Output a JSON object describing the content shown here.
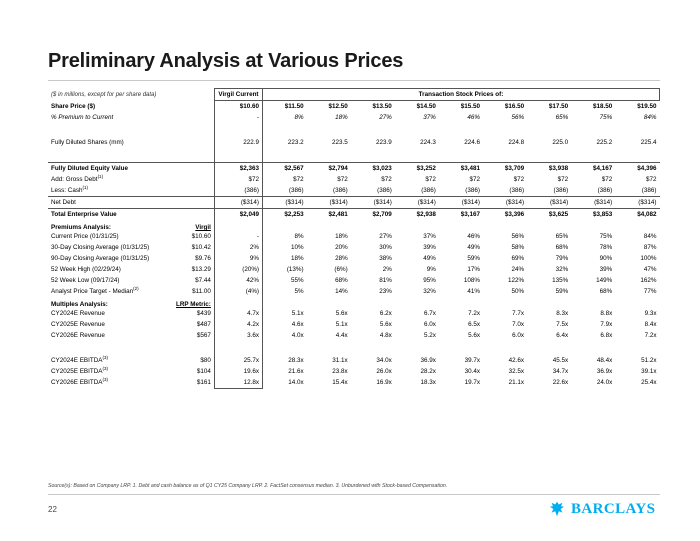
{
  "title": "Preliminary Analysis at Various Prices",
  "note": "($ in millions, except for per share data)",
  "header_current": "Virgil Current",
  "header_transaction": "Transaction Stock Prices of:",
  "rows_top": [
    {
      "label": "Share Price ($)",
      "style": "strong",
      "cur": "$10.60",
      "tx": [
        "$11.50",
        "$12.50",
        "$13.50",
        "$14.50",
        "$15.50",
        "$16.50",
        "$17.50",
        "$18.50",
        "$19.50"
      ]
    },
    {
      "label": "% Premium to Current",
      "style": "ital2",
      "cur": "-",
      "tx": [
        "8%",
        "18%",
        "27%",
        "37%",
        "46%",
        "56%",
        "65%",
        "75%",
        "84%"
      ]
    },
    {
      "spacer": true
    },
    {
      "label": "Fully Diluted Shares (mm)",
      "style": "plain",
      "cur": "222.9",
      "tx": [
        "223.2",
        "223.5",
        "223.9",
        "224.3",
        "224.6",
        "224.8",
        "225.0",
        "225.2",
        "225.4"
      ]
    },
    {
      "spacer": true
    },
    {
      "label": "Fully Diluted Equity Value",
      "style": "strong-border",
      "cur": "$2,363",
      "tx": [
        "$2,567",
        "$2,794",
        "$3,023",
        "$3,252",
        "$3,481",
        "$3,709",
        "$3,938",
        "$4,167",
        "$4,396"
      ]
    },
    {
      "label": "Add: Gross Debt",
      "sup": "(1)",
      "style": "ind1",
      "cur": "$72",
      "tx": [
        "$72",
        "$72",
        "$72",
        "$72",
        "$72",
        "$72",
        "$72",
        "$72",
        "$72"
      ]
    },
    {
      "label": "Less: Cash",
      "sup": "(1)",
      "style": "ind1",
      "cur": "(386)",
      "tx": [
        "(386)",
        "(386)",
        "(386)",
        "(386)",
        "(386)",
        "(386)",
        "(386)",
        "(386)",
        "(386)"
      ]
    },
    {
      "label": "Net Debt",
      "style": "ind1-border",
      "cur": "($314)",
      "tx": [
        "($314)",
        "($314)",
        "($314)",
        "($314)",
        "($314)",
        "($314)",
        "($314)",
        "($314)",
        "($314)"
      ]
    },
    {
      "label": "Total Enterprise Value",
      "style": "strong-border",
      "cur": "$2,049",
      "tx": [
        "$2,253",
        "$2,481",
        "$2,709",
        "$2,938",
        "$3,167",
        "$3,396",
        "$3,625",
        "$3,853",
        "$4,082"
      ]
    }
  ],
  "premiums": {
    "heading": "Premiums Analysis:",
    "side_heading": "Virgil",
    "rows": [
      {
        "label": "Current Price (01/31/25)",
        "side": "$10.60",
        "cur": "-",
        "tx": [
          "8%",
          "18%",
          "27%",
          "37%",
          "46%",
          "56%",
          "65%",
          "75%",
          "84%"
        ]
      },
      {
        "label": "30-Day Closing Average (01/31/25)",
        "side": "$10.42",
        "cur": "2%",
        "tx": [
          "10%",
          "20%",
          "30%",
          "39%",
          "49%",
          "58%",
          "68%",
          "78%",
          "87%"
        ]
      },
      {
        "label": "90-Day Closing Average (01/31/25)",
        "side": "$9.76",
        "cur": "9%",
        "tx": [
          "18%",
          "28%",
          "38%",
          "49%",
          "59%",
          "69%",
          "79%",
          "90%",
          "100%"
        ]
      },
      {
        "label": "52 Week High (02/29/24)",
        "side": "$13.29",
        "cur": "(20%)",
        "tx": [
          "(13%)",
          "(6%)",
          "2%",
          "9%",
          "17%",
          "24%",
          "32%",
          "39%",
          "47%"
        ]
      },
      {
        "label": "52 Week Low (09/17/24)",
        "side": "$7.44",
        "cur": "42%",
        "tx": [
          "55%",
          "68%",
          "81%",
          "95%",
          "108%",
          "122%",
          "135%",
          "149%",
          "162%"
        ]
      },
      {
        "label": "Analyst Price Target - Median",
        "sup": "(2)",
        "side": "$11.00",
        "cur": "(4%)",
        "tx": [
          "5%",
          "14%",
          "23%",
          "32%",
          "41%",
          "50%",
          "59%",
          "68%",
          "77%"
        ]
      }
    ]
  },
  "multiples": {
    "heading": "Multiples Analysis:",
    "side_heading": "LRP Metric:",
    "rows": [
      {
        "label": "CY2024E Revenue",
        "side": "$439",
        "cur": "4.7x",
        "tx": [
          "5.1x",
          "5.6x",
          "6.2x",
          "6.7x",
          "7.2x",
          "7.7x",
          "8.3x",
          "8.8x",
          "9.3x"
        ]
      },
      {
        "label": "CY2025E Revenue",
        "side": "$487",
        "cur": "4.2x",
        "tx": [
          "4.6x",
          "5.1x",
          "5.6x",
          "6.0x",
          "6.5x",
          "7.0x",
          "7.5x",
          "7.9x",
          "8.4x"
        ]
      },
      {
        "label": "CY2026E Revenue",
        "side": "$567",
        "cur": "3.6x",
        "tx": [
          "4.0x",
          "4.4x",
          "4.8x",
          "5.2x",
          "5.6x",
          "6.0x",
          "6.4x",
          "6.8x",
          "7.2x"
        ]
      },
      {
        "spacer": true
      },
      {
        "label": "CY2024E EBITDA",
        "sup": "(3)",
        "side": "$80",
        "cur": "25.7x",
        "tx": [
          "28.3x",
          "31.1x",
          "34.0x",
          "36.9x",
          "39.7x",
          "42.6x",
          "45.5x",
          "48.4x",
          "51.2x"
        ]
      },
      {
        "label": "CY2025E EBITDA",
        "sup": "(3)",
        "side": "$104",
        "cur": "19.6x",
        "tx": [
          "21.6x",
          "23.8x",
          "26.0x",
          "28.2x",
          "30.4x",
          "32.5x",
          "34.7x",
          "36.9x",
          "39.1x"
        ]
      },
      {
        "label": "CY2026E EBITDA",
        "sup": "(3)",
        "side": "$161",
        "cur": "12.8x",
        "tx": [
          "14.0x",
          "15.4x",
          "16.9x",
          "18.3x",
          "19.7x",
          "21.1x",
          "22.6x",
          "24.0x",
          "25.4x"
        ]
      }
    ]
  },
  "source": "Source(s): Based on Company LRP. 1. Debt and cash balance as of Q1 CY25 Company LRP. 2. FactSet consensus median. 3. Unburdened with Stock-based Compensation.",
  "page_number": "22",
  "brand": {
    "name": "BARCLAYS",
    "color": "#00aeef",
    "icon": "eagle-icon"
  }
}
